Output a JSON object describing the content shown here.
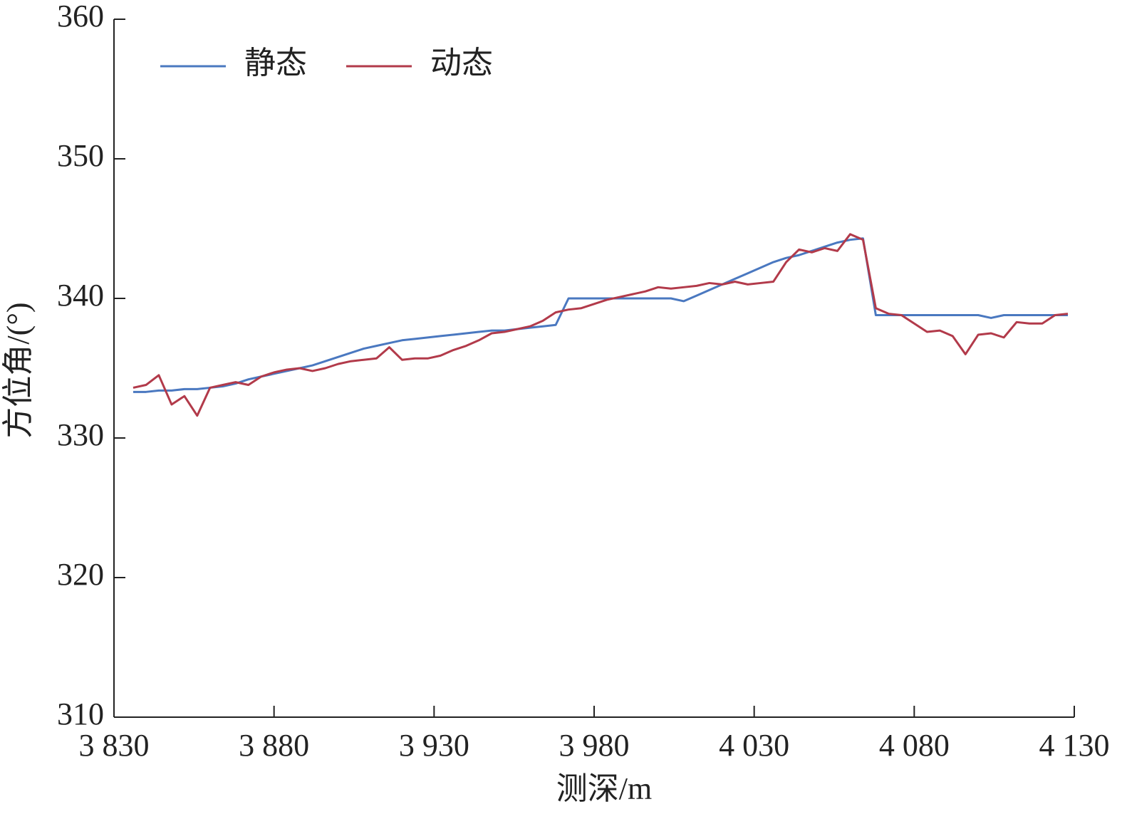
{
  "chart_data": {
    "type": "line",
    "x_label": "测深/m",
    "y_label": "方位角/(°)",
    "x": [
      3836,
      3840,
      3844,
      3848,
      3852,
      3856,
      3860,
      3864,
      3868,
      3872,
      3876,
      3880,
      3884,
      3888,
      3892,
      3896,
      3900,
      3904,
      3908,
      3912,
      3916,
      3920,
      3924,
      3928,
      3932,
      3936,
      3940,
      3944,
      3948,
      3952,
      3956,
      3960,
      3964,
      3968,
      3972,
      3976,
      3980,
      3984,
      3988,
      3992,
      3996,
      4000,
      4004,
      4008,
      4012,
      4016,
      4020,
      4024,
      4028,
      4032,
      4036,
      4040,
      4044,
      4048,
      4052,
      4056,
      4060,
      4064,
      4068,
      4072,
      4076,
      4080,
      4084,
      4088,
      4092,
      4096,
      4100,
      4104,
      4108,
      4112,
      4116,
      4120,
      4124,
      4128
    ],
    "series": [
      {
        "name": "静态",
        "color": "#4a78c0",
        "values": [
          333.3,
          333.3,
          333.4,
          333.4,
          333.5,
          333.5,
          333.6,
          333.7,
          333.9,
          334.2,
          334.4,
          334.6,
          334.8,
          335.0,
          335.2,
          335.5,
          335.8,
          336.1,
          336.4,
          336.6,
          336.8,
          337.0,
          337.1,
          337.2,
          337.3,
          337.4,
          337.5,
          337.6,
          337.7,
          337.7,
          337.8,
          337.9,
          338.0,
          338.1,
          340.0,
          340.0,
          340.0,
          340.0,
          340.0,
          340.0,
          340.0,
          340.0,
          340.0,
          339.8,
          340.2,
          340.6,
          341.0,
          341.4,
          341.8,
          342.2,
          342.6,
          342.9,
          343.1,
          343.4,
          343.7,
          344.0,
          344.2,
          344.3,
          338.8,
          338.8,
          338.8,
          338.8,
          338.8,
          338.8,
          338.8,
          338.8,
          338.8,
          338.6,
          338.8,
          338.8,
          338.8,
          338.8,
          338.8,
          338.8
        ]
      },
      {
        "name": "动态",
        "color": "#b23a4a",
        "values": [
          333.6,
          333.8,
          334.5,
          332.4,
          333.0,
          331.6,
          333.6,
          333.8,
          334.0,
          333.8,
          334.4,
          334.7,
          334.9,
          335.0,
          334.8,
          335.0,
          335.3,
          335.5,
          335.6,
          335.7,
          336.5,
          335.6,
          335.7,
          335.7,
          335.9,
          336.3,
          336.6,
          337.0,
          337.5,
          337.6,
          337.8,
          338.0,
          338.4,
          339.0,
          339.2,
          339.3,
          339.6,
          339.9,
          340.1,
          340.3,
          340.5,
          340.8,
          340.7,
          340.8,
          340.9,
          341.1,
          341.0,
          341.2,
          341.0,
          341.1,
          341.2,
          342.6,
          343.5,
          343.3,
          343.6,
          343.4,
          344.6,
          344.2,
          339.3,
          338.9,
          338.8,
          338.2,
          337.6,
          337.7,
          337.3,
          336.0,
          337.4,
          337.5,
          337.2,
          338.3,
          338.2,
          338.2,
          338.8,
          338.9
        ]
      }
    ],
    "xlim": [
      3830,
      4130
    ],
    "xticks": [
      {
        "value": 3830,
        "label": "3 830"
      },
      {
        "value": 3880,
        "label": "3 880"
      },
      {
        "value": 3930,
        "label": "3 930"
      },
      {
        "value": 3980,
        "label": "3 980"
      },
      {
        "value": 4030,
        "label": "4 030"
      },
      {
        "value": 4080,
        "label": "4 080"
      },
      {
        "value": 4130,
        "label": "4 130"
      }
    ],
    "ylim": [
      310,
      360
    ],
    "yticks": [
      310,
      320,
      330,
      340,
      350,
      360
    ],
    "grid": false,
    "legend": "top-left"
  }
}
